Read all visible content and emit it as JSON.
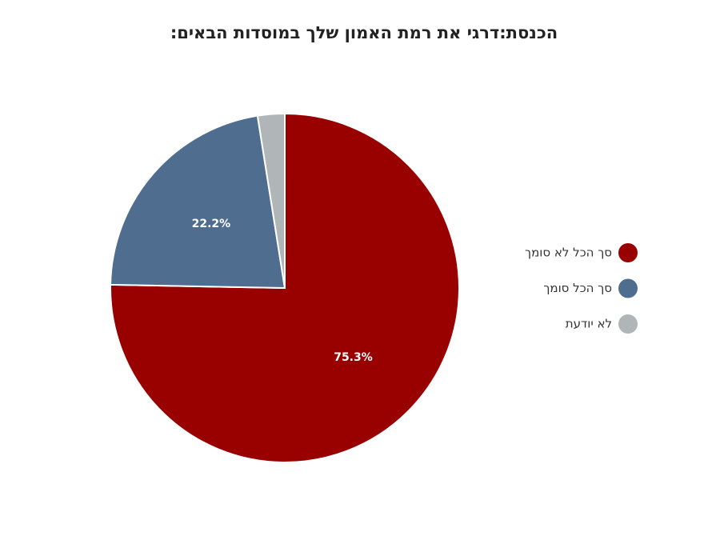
{
  "chart_data": {
    "type": "pie",
    "title": "הכנסת:דרגי את רמת האמון שלך במוסדות הבאים:",
    "categories": [
      "סך הכל לא סומך",
      "סך הכל סומך",
      "לא יודעת"
    ],
    "values": [
      75.3,
      22.2,
      2.5
    ],
    "value_labels": [
      "75.3%",
      "22.2%",
      null
    ],
    "colors": [
      "#990000",
      "#4f6d8f",
      "#b0b6b7"
    ],
    "legend": "right"
  }
}
